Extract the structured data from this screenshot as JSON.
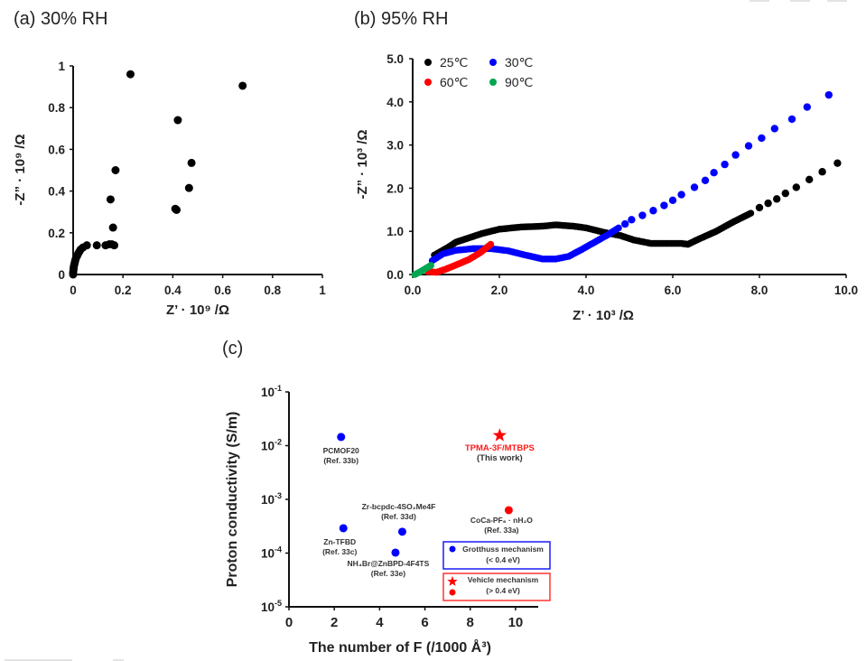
{
  "chart_data": [
    {
      "panel": "a",
      "type": "scatter",
      "title": "(a) 30% RH",
      "xlabel": "Z’ · 10⁹ /Ω",
      "ylabel": "-Z” · 10⁹ /Ω",
      "xlim": [
        0,
        1
      ],
      "ylim": [
        0,
        1
      ],
      "xticks": [
        "0",
        "0.2",
        "0.4",
        "0.6",
        "0.8",
        "1"
      ],
      "yticks": [
        "0",
        "0.2",
        "0.4",
        "0.6",
        "0.8",
        "1"
      ],
      "series": [
        {
          "name": "30% RH",
          "color": "#000000",
          "points": [
            [
              0.0,
              0.0
            ],
            [
              0.0,
              0.01
            ],
            [
              0.001,
              0.02
            ],
            [
              0.002,
              0.03
            ],
            [
              0.003,
              0.04
            ],
            [
              0.005,
              0.05
            ],
            [
              0.007,
              0.06
            ],
            [
              0.009,
              0.07
            ],
            [
              0.012,
              0.08
            ],
            [
              0.016,
              0.09
            ],
            [
              0.02,
              0.1
            ],
            [
              0.025,
              0.11
            ],
            [
              0.03,
              0.12
            ],
            [
              0.04,
              0.13
            ],
            [
              0.055,
              0.14
            ],
            [
              0.095,
              0.14
            ],
            [
              0.13,
              0.14
            ],
            [
              0.145,
              0.145
            ],
            [
              0.155,
              0.145
            ],
            [
              0.165,
              0.14
            ],
            [
              0.16,
              0.225
            ],
            [
              0.15,
              0.36
            ],
            [
              0.17,
              0.5
            ],
            [
              0.23,
              0.96
            ],
            [
              0.41,
              0.315
            ],
            [
              0.415,
              0.31
            ],
            [
              0.465,
              0.415
            ],
            [
              0.475,
              0.535
            ],
            [
              0.42,
              0.74
            ],
            [
              0.68,
              0.905
            ]
          ]
        }
      ]
    },
    {
      "panel": "b",
      "type": "scatter",
      "title": "(b) 95% RH",
      "xlabel": "Z’ · 10³ /Ω",
      "ylabel": "-Z” · 10³ /Ω",
      "xlim": [
        0,
        10
      ],
      "ylim": [
        0,
        5
      ],
      "xticks": [
        "0.0",
        "2.0",
        "4.0",
        "6.0",
        "8.0",
        "10.0"
      ],
      "yticks": [
        "0.0",
        "1.0",
        "2.0",
        "3.0",
        "4.0",
        "5.0"
      ],
      "legend": {
        "placement": "top-left",
        "columns": 2
      },
      "series": [
        {
          "name": "25℃",
          "color": "#000000",
          "curve": [
            [
              0.5,
              0.45
            ],
            [
              0.8,
              0.62
            ],
            [
              1.0,
              0.75
            ],
            [
              1.3,
              0.85
            ],
            [
              1.6,
              0.95
            ],
            [
              2.0,
              1.05
            ],
            [
              2.5,
              1.1
            ],
            [
              3.0,
              1.12
            ],
            [
              3.3,
              1.15
            ],
            [
              3.7,
              1.12
            ],
            [
              4.0,
              1.08
            ],
            [
              4.4,
              0.98
            ],
            [
              4.8,
              0.9
            ],
            [
              5.1,
              0.8
            ],
            [
              5.5,
              0.72
            ],
            [
              5.9,
              0.72
            ],
            [
              6.2,
              0.72
            ],
            [
              6.35,
              0.7
            ],
            [
              6.6,
              0.82
            ],
            [
              7.0,
              1.0
            ],
            [
              7.4,
              1.22
            ],
            [
              7.8,
              1.42
            ]
          ],
          "points": [
            [
              8.0,
              1.55
            ],
            [
              8.2,
              1.65
            ],
            [
              8.4,
              1.75
            ],
            [
              8.6,
              1.88
            ],
            [
              8.85,
              2.02
            ],
            [
              9.15,
              2.2
            ],
            [
              9.45,
              2.38
            ],
            [
              9.8,
              2.58
            ]
          ]
        },
        {
          "name": "30℃",
          "color": "#0000ff",
          "curve": [
            [
              0.45,
              0.32
            ],
            [
              0.7,
              0.48
            ],
            [
              1.0,
              0.56
            ],
            [
              1.4,
              0.6
            ],
            [
              1.8,
              0.6
            ],
            [
              2.2,
              0.55
            ],
            [
              2.6,
              0.45
            ],
            [
              3.0,
              0.36
            ],
            [
              3.3,
              0.36
            ],
            [
              3.6,
              0.42
            ],
            [
              3.9,
              0.58
            ],
            [
              4.2,
              0.75
            ],
            [
              4.5,
              0.92
            ],
            [
              4.75,
              1.08
            ]
          ],
          "points": [
            [
              4.9,
              1.17
            ],
            [
              5.05,
              1.27
            ],
            [
              5.3,
              1.37
            ],
            [
              5.55,
              1.48
            ],
            [
              5.8,
              1.6
            ],
            [
              6.0,
              1.72
            ],
            [
              6.2,
              1.85
            ],
            [
              6.5,
              2.02
            ],
            [
              6.75,
              2.18
            ],
            [
              6.95,
              2.36
            ],
            [
              7.2,
              2.55
            ],
            [
              7.45,
              2.77
            ],
            [
              7.75,
              2.98
            ],
            [
              8.05,
              3.16
            ],
            [
              8.35,
              3.38
            ],
            [
              8.75,
              3.6
            ],
            [
              9.1,
              3.88
            ],
            [
              9.6,
              4.16
            ]
          ]
        },
        {
          "name": "60℃",
          "color": "#ff0000",
          "curve": [
            [
              0.35,
              0.07
            ],
            [
              0.55,
              0.05
            ],
            [
              0.75,
              0.12
            ],
            [
              1.0,
              0.22
            ],
            [
              1.3,
              0.35
            ],
            [
              1.55,
              0.5
            ],
            [
              1.8,
              0.7
            ]
          ],
          "points": []
        },
        {
          "name": "90℃",
          "color": "#00a651",
          "curve": [
            [
              0.05,
              0.0
            ],
            [
              0.15,
              0.05
            ],
            [
              0.25,
              0.11
            ],
            [
              0.35,
              0.17
            ],
            [
              0.42,
              0.21
            ]
          ],
          "points": []
        }
      ]
    },
    {
      "panel": "c",
      "type": "scatter",
      "title": "(c)",
      "xlabel": "The number of F (/1000 Å³)",
      "ylabel": "Proton conductivity (S/m)",
      "xlim": [
        0,
        11
      ],
      "ylim": [
        1e-05,
        0.1
      ],
      "yscale": "log",
      "xticks": [
        "0",
        "2",
        "4",
        "6",
        "8",
        "10"
      ],
      "yticks": [
        {
          "base": "10",
          "exp": "-1"
        },
        {
          "base": "10",
          "exp": "-2"
        },
        {
          "base": "10",
          "exp": "-3"
        },
        {
          "base": "10",
          "exp": "-4"
        },
        {
          "base": "10",
          "exp": "-5"
        }
      ],
      "points": [
        {
          "x": 2.3,
          "y": 0.0145,
          "marker": "circle",
          "color": "#0000ff",
          "label": "PCMOF20",
          "ref": "(Ref. 33b)",
          "mechanism": "Grotthuss"
        },
        {
          "x": 2.4,
          "y": 0.00029,
          "marker": "circle",
          "color": "#0000ff",
          "label": "Zn-TFBD",
          "ref": "(Ref. 33c)",
          "mechanism": "Grotthuss"
        },
        {
          "x": 5.0,
          "y": 0.00025,
          "marker": "circle",
          "color": "#0000ff",
          "label": "Zr-bcpdc-4SO₂Me4F",
          "ref": "(Ref. 33d)",
          "mechanism": "Grotthuss"
        },
        {
          "x": 4.7,
          "y": 0.000102,
          "marker": "circle",
          "color": "#0000ff",
          "label": "NH₄Br@ZnBPD-4F4TS",
          "ref": "(Ref. 33e)",
          "mechanism": "Grotthuss"
        },
        {
          "x": 9.3,
          "y": 0.0155,
          "marker": "star",
          "color": "#ff0000",
          "label": "TPMA-3F/MTBPS",
          "ref": "(This work)",
          "mechanism": "Vehicle"
        },
        {
          "x": 9.7,
          "y": 0.00063,
          "marker": "circle",
          "color": "#ff0000",
          "label": "CoCa-PF₆ · nH₂O",
          "ref": "(Ref. 33a)",
          "mechanism": "Vehicle"
        }
      ],
      "legend": [
        {
          "title": "Grotthuss mechanism",
          "subtitle": "(< 0.4 eV)",
          "frame_color": "#1a1aff",
          "markers": [
            "circle-blue"
          ]
        },
        {
          "title": "Vehicle mechanism",
          "subtitle": "(> 0.4 eV)",
          "frame_color": "#ff3333",
          "markers": [
            "star-red",
            "circle-red"
          ]
        }
      ],
      "legend_placement": "bottom-right"
    }
  ]
}
